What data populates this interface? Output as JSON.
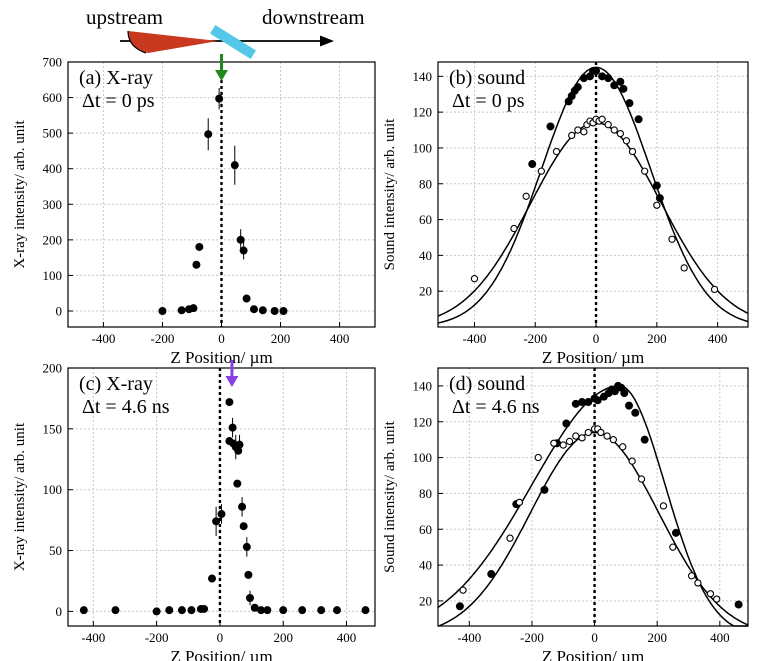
{
  "diagram": {
    "upstream_label": "upstream",
    "downstream_label": "downstream"
  },
  "colors": {
    "background": "#ffffff",
    "grid": "#c8c8c8",
    "frame": "#000000",
    "pointer_a": "#1f8a1f",
    "pointer_c": "#8b3fe0",
    "beam_cone": "#c8391f",
    "sample": "#55c8ea"
  },
  "chart_data": [
    {
      "type": "scatter",
      "panel": "a",
      "title": "(a) X-ray",
      "delay_label": "Δt = 0 ps",
      "xlabel": "Z Position/ µm",
      "ylabel": "X-ray intensity/ arb. unit",
      "xlim": [
        -520,
        520
      ],
      "ylim": [
        -45,
        700
      ],
      "xticks": [
        -400,
        -200,
        0,
        200,
        400
      ],
      "xticklabels": [
        "-400",
        "-200",
        "0",
        "200",
        "400"
      ],
      "yticks": [
        0,
        100,
        200,
        300,
        400,
        500,
        600,
        700
      ],
      "yticklabels": [
        "0",
        "100",
        "200",
        "300",
        "400",
        "500",
        "600",
        "700"
      ],
      "grid": true,
      "zero_line": true,
      "pointer_x": 0,
      "series": [
        {
          "name": "X-ray",
          "marker": "filled",
          "points": [
            {
              "x": -200,
              "y": 0
            },
            {
              "x": -135,
              "y": 2
            },
            {
              "x": -110,
              "y": 5
            },
            {
              "x": -95,
              "y": 8
            },
            {
              "x": -85,
              "y": 130
            },
            {
              "x": -75,
              "y": 180
            },
            {
              "x": -45,
              "y": 497
            },
            {
              "x": -8,
              "y": 597
            },
            {
              "x": 45,
              "y": 410
            },
            {
              "x": 65,
              "y": 200
            },
            {
              "x": 75,
              "y": 170
            },
            {
              "x": 85,
              "y": 35
            },
            {
              "x": 110,
              "y": 5
            },
            {
              "x": 140,
              "y": 2
            },
            {
              "x": 180,
              "y": 0
            },
            {
              "x": 210,
              "y": 0
            }
          ],
          "errors": [
            {
              "x": -45,
              "y": 497,
              "err": 45
            },
            {
              "x": -8,
              "y": 597,
              "err": 30
            },
            {
              "x": 45,
              "y": 410,
              "err": 55
            },
            {
              "x": 65,
              "y": 200,
              "err": 30
            },
            {
              "x": 75,
              "y": 170,
              "err": 25
            }
          ]
        }
      ]
    },
    {
      "type": "scatter",
      "panel": "b",
      "title": "(b) sound",
      "delay_label": "Δt = 0 ps",
      "xlabel": "Z Position/ µm",
      "ylabel": "Sound intensity/ arb. unit",
      "xlim": [
        -520,
        500
      ],
      "ylim": [
        0,
        148
      ],
      "xticks": [
        -400,
        -200,
        0,
        200,
        400
      ],
      "xticklabels": [
        "-400",
        "-200",
        "0",
        "200",
        "400"
      ],
      "yticks": [
        20,
        40,
        60,
        80,
        100,
        120,
        140
      ],
      "yticklabels": [
        "20",
        "40",
        "60",
        "80",
        "100",
        "120",
        "140"
      ],
      "grid": true,
      "zero_line": true,
      "series": [
        {
          "name": "filled",
          "marker": "filled",
          "points": [
            {
              "x": -210,
              "y": 91
            },
            {
              "x": -150,
              "y": 112
            },
            {
              "x": -90,
              "y": 126
            },
            {
              "x": -80,
              "y": 129
            },
            {
              "x": -70,
              "y": 132
            },
            {
              "x": -60,
              "y": 134
            },
            {
              "x": -40,
              "y": 139
            },
            {
              "x": -20,
              "y": 140
            },
            {
              "x": -10,
              "y": 143
            },
            {
              "x": 0,
              "y": 143
            },
            {
              "x": 20,
              "y": 140
            },
            {
              "x": 40,
              "y": 139
            },
            {
              "x": 60,
              "y": 135
            },
            {
              "x": 80,
              "y": 137
            },
            {
              "x": 90,
              "y": 133
            },
            {
              "x": 110,
              "y": 125
            },
            {
              "x": 140,
              "y": 116
            },
            {
              "x": 200,
              "y": 79
            },
            {
              "x": 210,
              "y": 72
            }
          ],
          "fit": {
            "amplitude": 145,
            "center": 0,
            "sigma": 180
          }
        },
        {
          "name": "open",
          "marker": "open",
          "points": [
            {
              "x": -400,
              "y": 27
            },
            {
              "x": -270,
              "y": 55
            },
            {
              "x": -230,
              "y": 73
            },
            {
              "x": -180,
              "y": 87
            },
            {
              "x": -130,
              "y": 98
            },
            {
              "x": -80,
              "y": 107
            },
            {
              "x": -60,
              "y": 110
            },
            {
              "x": -40,
              "y": 109
            },
            {
              "x": -30,
              "y": 113
            },
            {
              "x": -20,
              "y": 115
            },
            {
              "x": -10,
              "y": 114
            },
            {
              "x": 0,
              "y": 116
            },
            {
              "x": 10,
              "y": 115
            },
            {
              "x": 20,
              "y": 116
            },
            {
              "x": 40,
              "y": 113
            },
            {
              "x": 60,
              "y": 110
            },
            {
              "x": 80,
              "y": 108
            },
            {
              "x": 100,
              "y": 104
            },
            {
              "x": 120,
              "y": 98
            },
            {
              "x": 160,
              "y": 87
            },
            {
              "x": 200,
              "y": 68
            },
            {
              "x": 250,
              "y": 49
            },
            {
              "x": 290,
              "y": 33
            },
            {
              "x": 390,
              "y": 21
            }
          ],
          "fit": {
            "amplitude": 114,
            "center": 0,
            "sigma": 215
          }
        }
      ]
    },
    {
      "type": "scatter",
      "panel": "c",
      "title": "(c) X-ray",
      "delay_label": "Δt = 4.6 ns",
      "xlabel": "Z Position/ µm",
      "ylabel": "X-ray intensity/ arb. unit",
      "xlim": [
        -480,
        490
      ],
      "ylim": [
        -12,
        200
      ],
      "xticks": [
        -400,
        -200,
        0,
        200,
        400
      ],
      "xticklabels": [
        "-400",
        "-200",
        "0",
        "200",
        "400"
      ],
      "yticks": [
        0,
        50,
        100,
        150,
        200
      ],
      "yticklabels": [
        "0",
        "50",
        "100",
        "150",
        "200"
      ],
      "grid": true,
      "zero_line": true,
      "pointer_x": 38,
      "series": [
        {
          "name": "X-ray",
          "marker": "filled",
          "points": [
            {
              "x": -430,
              "y": 1
            },
            {
              "x": -330,
              "y": 1
            },
            {
              "x": -200,
              "y": 0
            },
            {
              "x": -160,
              "y": 1
            },
            {
              "x": -120,
              "y": 1
            },
            {
              "x": -90,
              "y": 1
            },
            {
              "x": -60,
              "y": 2
            },
            {
              "x": -50,
              "y": 2
            },
            {
              "x": -25,
              "y": 27
            },
            {
              "x": -12,
              "y": 74
            },
            {
              "x": 5,
              "y": 80
            },
            {
              "x": 30,
              "y": 172
            },
            {
              "x": 30,
              "y": 140
            },
            {
              "x": 40,
              "y": 151
            },
            {
              "x": 42,
              "y": 138
            },
            {
              "x": 50,
              "y": 135
            },
            {
              "x": 55,
              "y": 105
            },
            {
              "x": 58,
              "y": 132
            },
            {
              "x": 62,
              "y": 137
            },
            {
              "x": 70,
              "y": 86
            },
            {
              "x": 75,
              "y": 70
            },
            {
              "x": 85,
              "y": 53
            },
            {
              "x": 90,
              "y": 30
            },
            {
              "x": 95,
              "y": 11
            },
            {
              "x": 110,
              "y": 3
            },
            {
              "x": 130,
              "y": 1
            },
            {
              "x": 150,
              "y": 1
            },
            {
              "x": 200,
              "y": 1
            },
            {
              "x": 260,
              "y": 1
            },
            {
              "x": 320,
              "y": 1
            },
            {
              "x": 370,
              "y": 1
            },
            {
              "x": 460,
              "y": 1
            }
          ],
          "errors": [
            {
              "x": -12,
              "y": 74,
              "err": 12
            },
            {
              "x": 5,
              "y": 80,
              "err": 8
            },
            {
              "x": 40,
              "y": 151,
              "err": 8
            },
            {
              "x": 50,
              "y": 135,
              "err": 10
            },
            {
              "x": 62,
              "y": 137,
              "err": 8
            },
            {
              "x": 70,
              "y": 86,
              "err": 8
            },
            {
              "x": 85,
              "y": 53,
              "err": 8
            },
            {
              "x": 95,
              "y": 11,
              "err": 6
            }
          ]
        }
      ]
    },
    {
      "type": "scatter",
      "panel": "d",
      "title": "(d) sound",
      "delay_label": "Δt = 4.6 ns",
      "xlabel": "Z Position/ µm",
      "ylabel": "Sound intensity/ arb. unit",
      "xlim": [
        -500,
        490
      ],
      "ylim": [
        6,
        150
      ],
      "xticks": [
        -400,
        -200,
        0,
        200,
        400
      ],
      "xticklabels": [
        "-400",
        "-200",
        "0",
        "200",
        "400"
      ],
      "yticks": [
        20,
        40,
        60,
        80,
        100,
        120,
        140
      ],
      "yticklabels": [
        "20",
        "40",
        "60",
        "80",
        "100",
        "120",
        "140"
      ],
      "grid": true,
      "zero_line": true,
      "series": [
        {
          "name": "filled",
          "marker": "filled",
          "points": [
            {
              "x": -430,
              "y": 17
            },
            {
              "x": -330,
              "y": 35
            },
            {
              "x": -250,
              "y": 74
            },
            {
              "x": -160,
              "y": 82
            },
            {
              "x": -120,
              "y": 108
            },
            {
              "x": -90,
              "y": 119
            },
            {
              "x": -60,
              "y": 130
            },
            {
              "x": -40,
              "y": 131
            },
            {
              "x": -20,
              "y": 131
            },
            {
              "x": 0,
              "y": 133
            },
            {
              "x": 10,
              "y": 132
            },
            {
              "x": 30,
              "y": 134
            },
            {
              "x": 45,
              "y": 136
            },
            {
              "x": 55,
              "y": 138
            },
            {
              "x": 65,
              "y": 137
            },
            {
              "x": 75,
              "y": 140
            },
            {
              "x": 85,
              "y": 139
            },
            {
              "x": 95,
              "y": 136
            },
            {
              "x": 110,
              "y": 129
            },
            {
              "x": 130,
              "y": 125
            },
            {
              "x": 160,
              "y": 110
            },
            {
              "x": 260,
              "y": 58
            },
            {
              "x": 460,
              "y": 18
            }
          ],
          "fit": {
            "type": "asymmetric",
            "amplitude": 140,
            "center": 80,
            "sigma_left": 280,
            "sigma_right": 145
          }
        },
        {
          "name": "open",
          "marker": "open",
          "points": [
            {
              "x": -420,
              "y": 26
            },
            {
              "x": -270,
              "y": 55
            },
            {
              "x": -240,
              "y": 75
            },
            {
              "x": -180,
              "y": 100
            },
            {
              "x": -130,
              "y": 108
            },
            {
              "x": -100,
              "y": 107
            },
            {
              "x": -80,
              "y": 109
            },
            {
              "x": -60,
              "y": 112
            },
            {
              "x": -40,
              "y": 111
            },
            {
              "x": -20,
              "y": 114
            },
            {
              "x": 0,
              "y": 116
            },
            {
              "x": 10,
              "y": 116
            },
            {
              "x": 20,
              "y": 114
            },
            {
              "x": 40,
              "y": 112
            },
            {
              "x": 60,
              "y": 110
            },
            {
              "x": 90,
              "y": 106
            },
            {
              "x": 120,
              "y": 98
            },
            {
              "x": 150,
              "y": 88
            },
            {
              "x": 220,
              "y": 73
            },
            {
              "x": 250,
              "y": 50
            },
            {
              "x": 310,
              "y": 34
            },
            {
              "x": 330,
              "y": 30
            },
            {
              "x": 370,
              "y": 24
            },
            {
              "x": 390,
              "y": 21
            }
          ],
          "fit": {
            "amplitude": 114,
            "center": 0,
            "sigma": 205
          }
        }
      ]
    }
  ]
}
